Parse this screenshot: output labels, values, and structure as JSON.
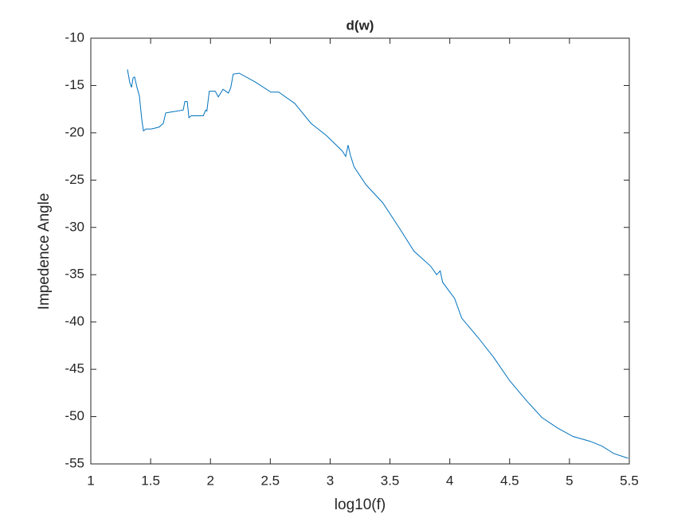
{
  "chart_data": {
    "type": "line",
    "title": "d(w)",
    "x_label": "log10(f)",
    "y_label": "Impedence Angle",
    "x": [
      1.306,
      1.326,
      1.34,
      1.353,
      1.366,
      1.386,
      1.406,
      1.426,
      1.44,
      1.46,
      1.506,
      1.57,
      1.606,
      1.626,
      1.672,
      1.772,
      1.786,
      1.806,
      1.82,
      1.84,
      1.94,
      1.96,
      1.97,
      1.99,
      2.04,
      2.065,
      2.105,
      2.15,
      2.17,
      2.19,
      2.24,
      2.37,
      2.505,
      2.57,
      2.705,
      2.84,
      2.97,
      3.1,
      3.13,
      3.15,
      3.17,
      3.2,
      3.3,
      3.44,
      3.57,
      3.7,
      3.84,
      3.89,
      3.92,
      3.94,
      4.04,
      4.1,
      4.24,
      4.37,
      4.5,
      4.64,
      4.77,
      4.9,
      5.03,
      5.17,
      5.27,
      5.37,
      5.49
    ],
    "series": [
      {
        "name": "d(w)",
        "color": "#0072bd",
        "values": [
          -13.3,
          -14.7,
          -15.2,
          -14.2,
          -14.1,
          -15.2,
          -16.1,
          -18.6,
          -19.8,
          -19.6,
          -19.6,
          -19.4,
          -19.0,
          -17.9,
          -17.8,
          -17.6,
          -16.7,
          -16.7,
          -18.4,
          -18.2,
          -18.2,
          -17.6,
          -17.7,
          -15.6,
          -15.6,
          -16.2,
          -15.4,
          -15.8,
          -15.2,
          -13.8,
          -13.7,
          -14.6,
          -15.7,
          -15.7,
          -16.9,
          -19.0,
          -20.3,
          -21.9,
          -22.5,
          -21.3,
          -22.4,
          -23.6,
          -25.5,
          -27.4,
          -29.9,
          -32.5,
          -34.1,
          -35.0,
          -34.6,
          -35.8,
          -37.5,
          -39.6,
          -41.7,
          -43.8,
          -46.2,
          -48.3,
          -50.1,
          -51.2,
          -52.1,
          -52.6,
          -53.1,
          -53.9,
          -54.4
        ]
      }
    ],
    "xlim": [
      1,
      5.5
    ],
    "xticks": [
      1,
      1.5,
      2,
      2.5,
      3,
      3.5,
      4,
      4.5,
      5,
      5.5
    ],
    "ylim": [
      -55,
      -10
    ],
    "yticks": [
      -55,
      -50,
      -45,
      -40,
      -35,
      -30,
      -25,
      -20,
      -15,
      -10
    ],
    "grid": false
  }
}
